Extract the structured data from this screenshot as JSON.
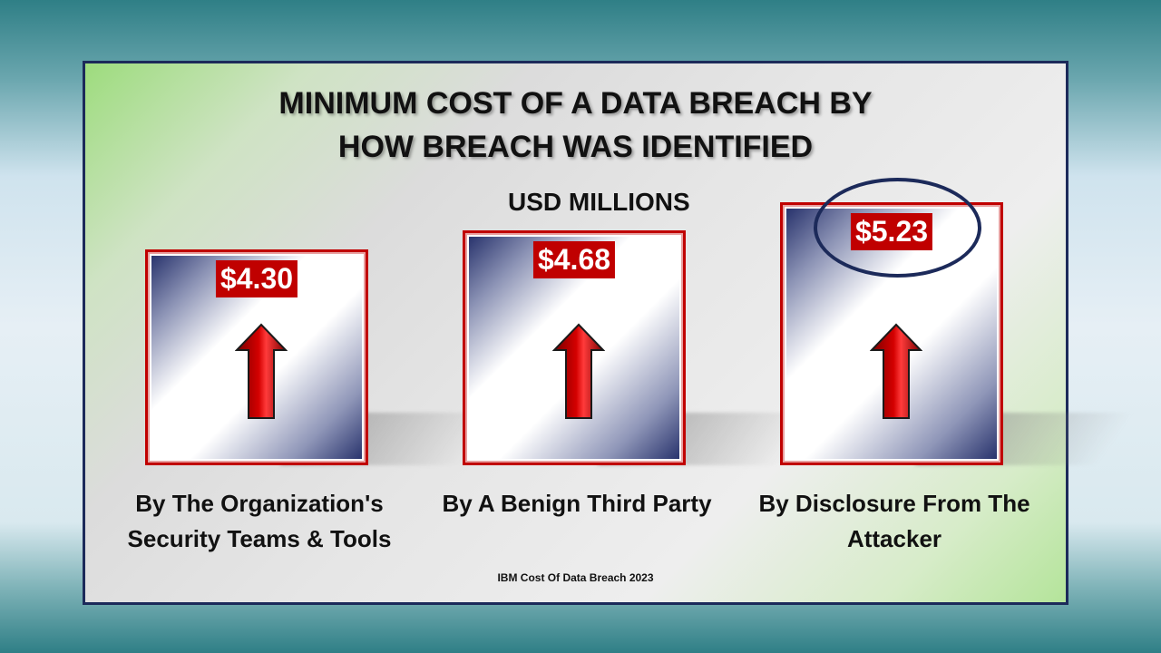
{
  "chart_data": {
    "type": "bar",
    "title": "MINIMUM COST OF A DATA BREACH BY",
    "title_line2": "HOW BREACH WAS IDENTIFIED",
    "subtitle": "USD MILLIONS",
    "categories": [
      "By The Organization's Security Teams & Tools",
      "By A Benign Third Party",
      "By Disclosure From The Attacker"
    ],
    "category_lines": [
      [
        "By The Organization's",
        "Security Teams & Tools"
      ],
      [
        "By A Benign Third Party"
      ],
      [
        "By Disclosure From The",
        "Attacker"
      ]
    ],
    "values": [
      4.3,
      4.68,
      5.23
    ],
    "value_labels": [
      "$4.30",
      "$4.68",
      "$5.23"
    ],
    "highlighted": "By Disclosure From The Attacker",
    "source": "IBM Cost Of Data Breach 2023"
  },
  "colors": {
    "value_box": "#c00000",
    "box_border": "#c00000",
    "arrow": "#d40000",
    "highlight_ring": "#1c2a5a",
    "panel_border": "#1c2a5a"
  },
  "icons": {
    "arrow": "up-arrow-icon"
  }
}
